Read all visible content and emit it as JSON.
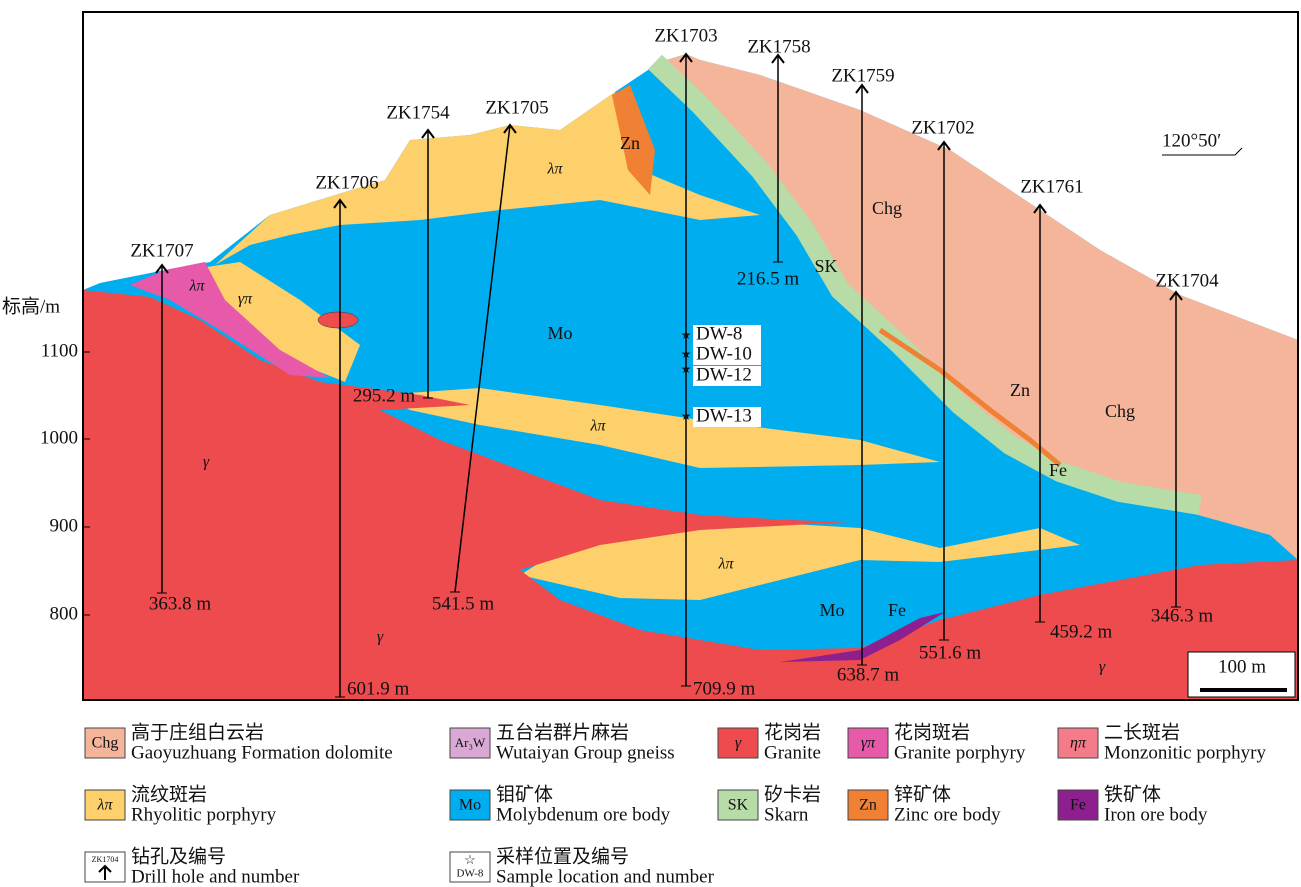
{
  "axis": {
    "title": "标高/m",
    "ticks": [
      "1100",
      "1000",
      "900",
      "800"
    ]
  },
  "orientation": "120°50′",
  "scale_bar": "100 m",
  "drill_holes": [
    {
      "name": "ZK1707",
      "depth": "363.8 m"
    },
    {
      "name": "ZK1706",
      "depth": "601.9 m"
    },
    {
      "name": "ZK1754",
      "depth": "295.2 m"
    },
    {
      "name": "ZK1705",
      "depth": "541.5 m"
    },
    {
      "name": "ZK1703",
      "depth": "709.9 m"
    },
    {
      "name": "ZK1758",
      "depth": "216.5 m"
    },
    {
      "name": "ZK1759",
      "depth": "638.7 m"
    },
    {
      "name": "ZK1702",
      "depth": "551.6 m"
    },
    {
      "name": "ZK1761",
      "depth": "459.2 m"
    },
    {
      "name": "ZK1704",
      "depth": "346.3 m"
    }
  ],
  "samples": [
    "DW-8",
    "DW-10",
    "DW-12",
    "DW-13"
  ],
  "rock_labels": [
    "λπ",
    "γπ",
    "λπ",
    "Zn",
    "Chg",
    "SK",
    "Mo",
    "λπ",
    "γ",
    "Chg",
    "Zn",
    "Fe",
    "λπ",
    "Mo",
    "Fe",
    "γ",
    "γ"
  ],
  "legend": [
    {
      "symbol": "Chg",
      "zh": "高于庄组白云岩",
      "en": "Gaoyuzhuang Formation dolomite"
    },
    {
      "symbol": "Ar₃W",
      "zh": "五台岩群片麻岩",
      "en": "Wutaiyan Group gneiss"
    },
    {
      "symbol": "γ",
      "zh": "花岗岩",
      "en": "Granite"
    },
    {
      "symbol": "γπ",
      "zh": "花岗斑岩",
      "en": "Granite porphyry"
    },
    {
      "symbol": "ηπ",
      "zh": "二长斑岩",
      "en": "Monzonitic porphyry"
    },
    {
      "symbol": "λπ",
      "zh": "流纹斑岩",
      "en": "Rhyolitic porphyry"
    },
    {
      "symbol": "Mo",
      "zh": "钼矿体",
      "en": "Molybdenum ore body"
    },
    {
      "symbol": "SK",
      "zh": "矽卡岩",
      "en": "Skarn"
    },
    {
      "symbol": "Zn",
      "zh": "锌矿体",
      "en": "Zinc ore body"
    },
    {
      "symbol": "Fe",
      "zh": "铁矿体",
      "en": "Iron ore body"
    },
    {
      "symbol": "ZK1704",
      "zh": "钻孔及编号",
      "en": "Drill hole and number"
    },
    {
      "symbol": "DW-8",
      "zh": "采样位置及编号",
      "en": "Sample location and number"
    }
  ]
}
